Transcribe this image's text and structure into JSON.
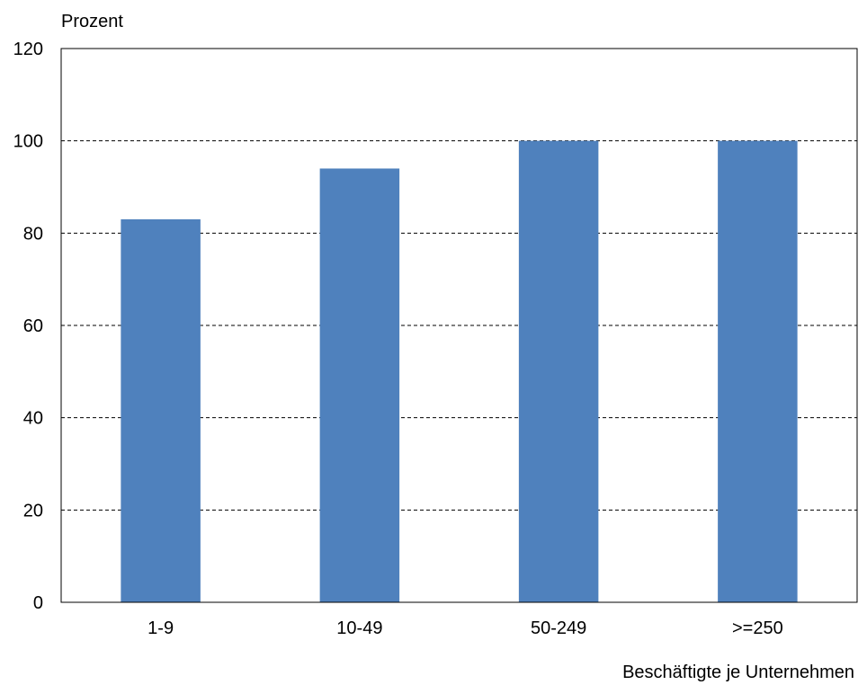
{
  "chart_data": {
    "type": "bar",
    "title": "",
    "ylabel": "Prozent",
    "xlabel": "Beschäftigte je Unternehmen",
    "categories": [
      "1-9",
      "10-49",
      "50-249",
      ">=250"
    ],
    "values": [
      83,
      94,
      100,
      100
    ],
    "ylim": [
      0,
      120
    ],
    "yticks": [
      0,
      20,
      40,
      60,
      80,
      100,
      120
    ],
    "grid": "horizontal-dashed",
    "legend": "none",
    "colors": {
      "bar": "#4f81bd",
      "grid": "#000000",
      "axis": "#000000"
    }
  }
}
